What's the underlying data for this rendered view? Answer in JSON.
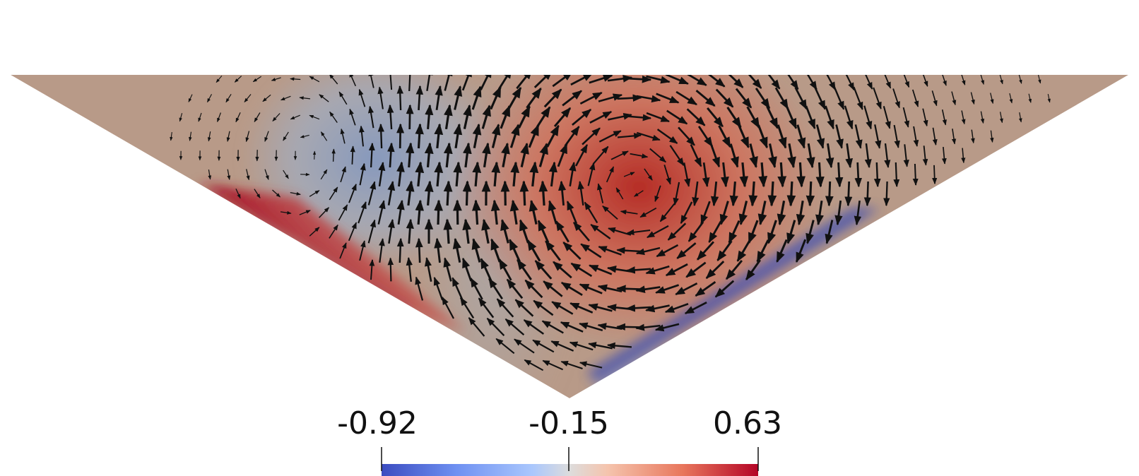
{
  "colorbar": {
    "min_label": "-0.92",
    "mid_label": "-0.15",
    "max_label": "0.63",
    "min_value": -0.92,
    "mid_value": -0.15,
    "max_value": 0.63,
    "colormap": "coolwarm",
    "stops": [
      {
        "t": 0.0,
        "color": "#3b4cc0"
      },
      {
        "t": 0.2,
        "color": "#6f91f2"
      },
      {
        "t": 0.4,
        "color": "#aac7fd"
      },
      {
        "t": 0.5,
        "color": "#dddcdc"
      },
      {
        "t": 0.6,
        "color": "#f5c4ad"
      },
      {
        "t": 0.8,
        "color": "#e8765c"
      },
      {
        "t": 1.0,
        "color": "#b40426"
      }
    ]
  },
  "field": {
    "background_color": "#b89a88",
    "positive_vortex_color": "#b8342a",
    "negative_vortex_color": "#8a9dbd",
    "wall_hot_color": "#a8172b",
    "wall_cold_color": "#3346a8",
    "arrow_color": "#111111"
  }
}
